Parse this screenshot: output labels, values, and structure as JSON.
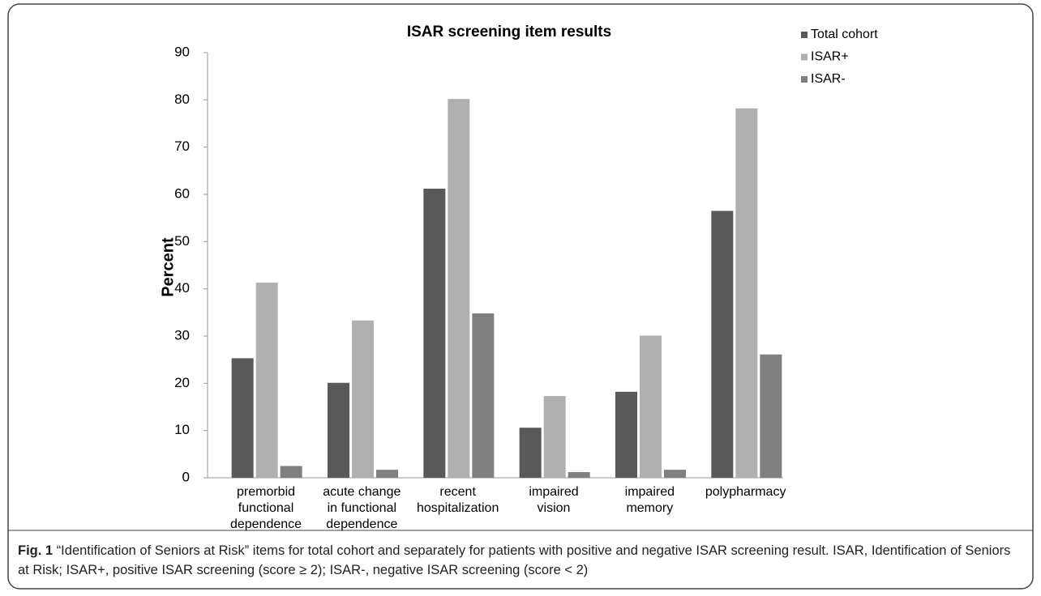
{
  "chart_data": {
    "type": "bar",
    "title": "ISAR screening item results",
    "ylabel": "Percent",
    "categories": [
      "premorbid\nfunctional\ndependence",
      "acute change\nin functional\ndependence",
      "recent\nhospitalization",
      "impaired\nvision",
      "impaired\nmemory",
      "polypharmacy"
    ],
    "series": [
      {
        "name": "Total cohort",
        "color": "#595959",
        "values": [
          25.3,
          20.1,
          61.2,
          10.6,
          18.2,
          56.5
        ]
      },
      {
        "name": "ISAR+",
        "color": "#b0b0b0",
        "values": [
          41.3,
          33.3,
          80.2,
          17.3,
          30.1,
          78.2
        ]
      },
      {
        "name": "ISAR-",
        "color": "#808080",
        "values": [
          2.5,
          1.7,
          34.8,
          1.2,
          1.7,
          26.1
        ]
      }
    ],
    "ylim": [
      0,
      90
    ],
    "yticks": [
      0,
      10,
      20,
      30,
      40,
      50,
      60,
      70,
      80,
      90
    ],
    "grid": false,
    "legend": "top-right"
  },
  "caption": {
    "label": "Fig. 1",
    "text": "“Identification of Seniors at Risk” items for total cohort and separately for patients with positive and negative ISAR screening result. ISAR, Identification of Seniors at Risk; ISAR+, positive ISAR screening (score ≥ 2); ISAR-, negative ISAR screening (score < 2)"
  }
}
